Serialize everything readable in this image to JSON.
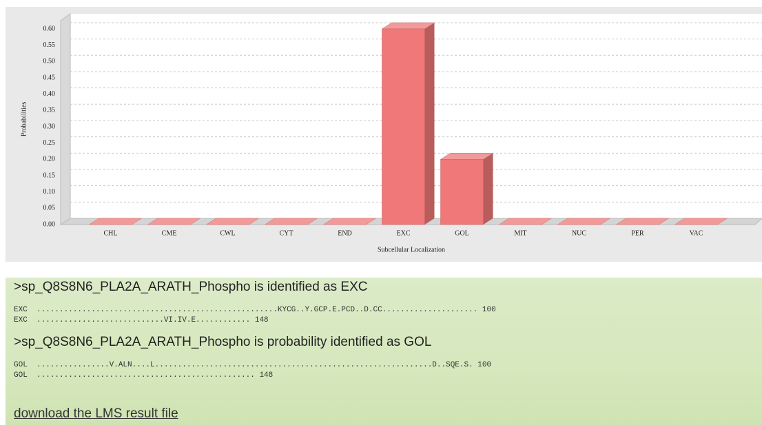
{
  "chart_data": {
    "type": "bar",
    "x_label": "Subcellular Localization",
    "y_label": "Probabilities",
    "categories": [
      "CHL",
      "CME",
      "CWL",
      "CYT",
      "END",
      "EXC",
      "GOL",
      "MIT",
      "NUC",
      "PER",
      "VAC"
    ],
    "values": [
      0,
      0,
      0,
      0,
      0,
      0.6,
      0.2,
      0,
      0,
      0,
      0
    ],
    "color": "#f07878",
    "ylim": [
      0,
      0.62
    ],
    "yticks": [
      {
        "value": 0,
        "label": "0.00"
      },
      {
        "value": 0.05,
        "label": "0.05"
      },
      {
        "value": 0.1,
        "label": "0.10"
      },
      {
        "value": 0.15,
        "label": "0.15"
      },
      {
        "value": 0.2,
        "label": "0.20"
      },
      {
        "value": 0.25,
        "label": "0.25"
      },
      {
        "value": 0.3,
        "label": "0.30"
      },
      {
        "value": 0.35,
        "label": "0.35"
      },
      {
        "value": 0.4,
        "label": "0.40"
      },
      {
        "value": 0.45,
        "label": "0.45"
      },
      {
        "value": 0.5,
        "label": "0.50"
      },
      {
        "value": 0.55,
        "label": "0.55"
      },
      {
        "value": 0.6,
        "label": "0.60"
      }
    ],
    "grid": true
  },
  "result": {
    "blocks": [
      {
        "heading": ">sp_Q8S8N6_PLA2A_ARATH_Phospho is identified as EXC",
        "lines": [
          "EXC  .....................................................KYCG..Y.GCP.E.PCD..D.CC..................... 100",
          "EXC  ............................VI.IV.E............ 148"
        ]
      },
      {
        "heading": ">sp_Q8S8N6_PLA2A_ARATH_Phospho is probability identified as GOL",
        "lines": [
          "GOL  ................V.ALN....L.............................................................D..SQE.S. 100",
          "GOL  ................................................ 148"
        ]
      }
    ],
    "link": "download the LMS result file"
  }
}
